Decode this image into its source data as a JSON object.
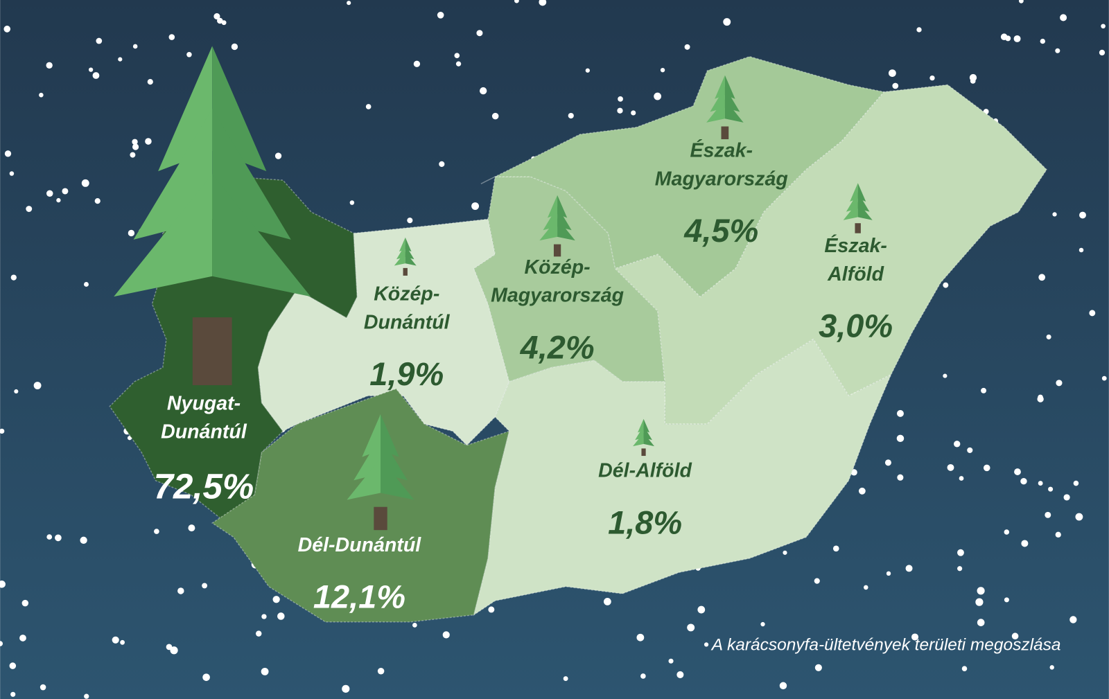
{
  "map": {
    "caption": "A karácsonyfa-ültetvények területi megoszlása",
    "regions": [
      {
        "name_lines": [
          "Nyugat-",
          "Dunántúl"
        ],
        "value": 72.5,
        "value_label": "72,5%",
        "color": "#2f5f2f"
      },
      {
        "name_lines": [
          "Közép-",
          "Dunántúl"
        ],
        "value": 1.9,
        "value_label": "1,9%",
        "color": "#d7e7d0"
      },
      {
        "name_lines": [
          "Dél-Dunántúl"
        ],
        "value": 12.1,
        "value_label": "12,1%",
        "color": "#5f8d54"
      },
      {
        "name_lines": [
          "Közép-",
          "Magyarország"
        ],
        "value": 4.2,
        "value_label": "4,2%",
        "color": "#a8cb9c"
      },
      {
        "name_lines": [
          "Észak-",
          "Magyarország"
        ],
        "value": 4.5,
        "value_label": "4,5%",
        "color": "#a4c998"
      },
      {
        "name_lines": [
          "Észak-",
          "Alföld"
        ],
        "value": 3.0,
        "value_label": "3,0%",
        "color": "#c3dcb7"
      },
      {
        "name_lines": [
          "Dél-Alföld"
        ],
        "value": 1.8,
        "value_label": "1,8%",
        "color": "#cfe3c6"
      }
    ]
  }
}
